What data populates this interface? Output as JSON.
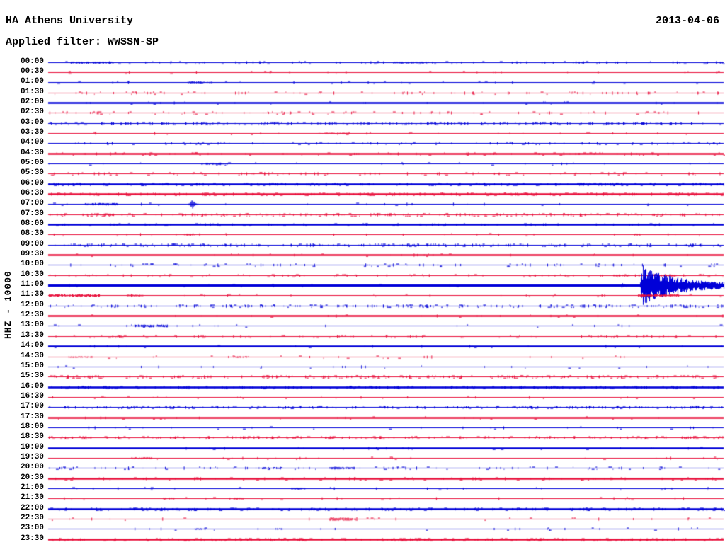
{
  "header": {
    "station": "HA Athens University",
    "filter_label": "Applied filter: WWSSN-SP",
    "date": "2013-04-06"
  },
  "chart_data": {
    "type": "line",
    "subtype": "helicorder-day-plot",
    "title": "HA Athens University",
    "date": "2013-04-06",
    "filter": "WWSSN-SP",
    "ylabel": "HHZ - 10000",
    "row_duration_minutes": 30,
    "x_range_minutes": [
      0,
      30
    ],
    "grid": false,
    "legend": "none",
    "colors": {
      "blue": "#0000D8",
      "red": "#E8103C"
    },
    "rows": [
      {
        "label": "00:00",
        "color": "blue",
        "bold": false,
        "activity": 2,
        "clusters": [
          [
            1.0,
            2.9,
            1.5
          ],
          [
            15.3,
            16.9,
            1.5
          ]
        ],
        "events": []
      },
      {
        "label": "00:30",
        "color": "red",
        "bold": false,
        "activity": 1,
        "clusters": [],
        "events": []
      },
      {
        "label": "01:00",
        "color": "blue",
        "bold": false,
        "activity": 1,
        "clusters": [
          [
            6.2,
            7.3,
            1.5
          ]
        ],
        "events": []
      },
      {
        "label": "01:30",
        "color": "red",
        "bold": false,
        "activity": 2,
        "clusters": [],
        "events": []
      },
      {
        "label": "02:00",
        "color": "blue",
        "bold": true,
        "activity": 1,
        "clusters": [],
        "events": []
      },
      {
        "label": "02:30",
        "color": "red",
        "bold": false,
        "activity": 2,
        "clusters": [],
        "events": []
      },
      {
        "label": "03:00",
        "color": "blue",
        "bold": false,
        "activity": 3,
        "clusters": [],
        "events": []
      },
      {
        "label": "03:30",
        "color": "red",
        "bold": false,
        "activity": 1,
        "clusters": [
          [
            11.9,
            13.4,
            1.2
          ]
        ],
        "events": []
      },
      {
        "label": "04:00",
        "color": "blue",
        "bold": false,
        "activity": 2,
        "clusters": [],
        "events": []
      },
      {
        "label": "04:30",
        "color": "red",
        "bold": true,
        "activity": 2,
        "clusters": [],
        "events": []
      },
      {
        "label": "05:00",
        "color": "blue",
        "bold": false,
        "activity": 1,
        "clusters": [
          [
            6.8,
            7.8,
            1.5
          ]
        ],
        "events": []
      },
      {
        "label": "05:30",
        "color": "red",
        "bold": false,
        "activity": 2,
        "clusters": [],
        "events": []
      },
      {
        "label": "06:00",
        "color": "blue",
        "bold": true,
        "activity": 3,
        "clusters": [],
        "events": []
      },
      {
        "label": "06:30",
        "color": "red",
        "bold": true,
        "activity": 3,
        "clusters": [],
        "events": []
      },
      {
        "label": "07:00",
        "color": "blue",
        "bold": false,
        "activity": 1,
        "clusters": [
          [
            1.6,
            3.1,
            1.8
          ]
        ],
        "events": [
          {
            "minute": 6.4,
            "amplitude": 7,
            "kind": "spike"
          }
        ]
      },
      {
        "label": "07:30",
        "color": "red",
        "bold": false,
        "activity": 3,
        "clusters": [],
        "events": []
      },
      {
        "label": "08:00",
        "color": "blue",
        "bold": true,
        "activity": 2,
        "clusters": [],
        "events": []
      },
      {
        "label": "08:30",
        "color": "red",
        "bold": false,
        "activity": 1,
        "clusters": [
          [
            6.0,
            6.5,
            1.5
          ],
          [
            26.0,
            26.3,
            1.5
          ]
        ],
        "events": []
      },
      {
        "label": "09:00",
        "color": "blue",
        "bold": false,
        "activity": 3,
        "clusters": [],
        "events": []
      },
      {
        "label": "09:30",
        "color": "red",
        "bold": true,
        "activity": 1,
        "clusters": [],
        "events": []
      },
      {
        "label": "10:00",
        "color": "blue",
        "bold": false,
        "activity": 2,
        "clusters": [],
        "events": []
      },
      {
        "label": "10:30",
        "color": "red",
        "bold": false,
        "activity": 2,
        "clusters": [
          [
            25.1,
            25.8,
            1.5
          ],
          [
            27.3,
            27.9,
            1.5
          ]
        ],
        "events": []
      },
      {
        "label": "11:00",
        "color": "blue",
        "bold": true,
        "activity": 1,
        "clusters": [],
        "events": [
          {
            "minute": 25.5,
            "amplitude": 4,
            "kind": "blob"
          },
          {
            "minute": 26.3,
            "amplitude": 26,
            "kind": "burst"
          }
        ]
      },
      {
        "label": "11:30",
        "color": "red",
        "bold": false,
        "activity": 1,
        "clusters": [
          [
            0.0,
            2.3,
            2.0
          ],
          [
            3.5,
            4.2,
            1.5
          ],
          [
            26.2,
            28.0,
            2.0
          ]
        ],
        "events": []
      },
      {
        "label": "12:00",
        "color": "blue",
        "bold": false,
        "activity": 3,
        "clusters": [],
        "events": []
      },
      {
        "label": "12:30",
        "color": "red",
        "bold": true,
        "activity": 1,
        "clusters": [],
        "events": []
      },
      {
        "label": "13:00",
        "color": "blue",
        "bold": false,
        "activity": 1,
        "clusters": [
          [
            3.8,
            5.3,
            2.0
          ]
        ],
        "events": []
      },
      {
        "label": "13:30",
        "color": "red",
        "bold": false,
        "activity": 2,
        "clusters": [],
        "events": []
      },
      {
        "label": "14:00",
        "color": "blue",
        "bold": true,
        "activity": 1,
        "clusters": [],
        "events": []
      },
      {
        "label": "14:30",
        "color": "red",
        "bold": false,
        "activity": 1,
        "clusters": [
          [
            0.9,
            2.0,
            1.2
          ],
          [
            8.2,
            8.9,
            1.2
          ]
        ],
        "events": []
      },
      {
        "label": "15:00",
        "color": "blue",
        "bold": false,
        "activity": 1,
        "clusters": [],
        "events": []
      },
      {
        "label": "15:30",
        "color": "red",
        "bold": false,
        "activity": 3,
        "clusters": [],
        "events": []
      },
      {
        "label": "16:00",
        "color": "blue",
        "bold": true,
        "activity": 3,
        "clusters": [],
        "events": []
      },
      {
        "label": "16:30",
        "color": "red",
        "bold": false,
        "activity": 1,
        "clusters": [],
        "events": []
      },
      {
        "label": "17:00",
        "color": "blue",
        "bold": false,
        "activity": 3,
        "clusters": [],
        "events": []
      },
      {
        "label": "17:30",
        "color": "red",
        "bold": true,
        "activity": 1,
        "clusters": [],
        "events": []
      },
      {
        "label": "18:00",
        "color": "blue",
        "bold": false,
        "activity": 1,
        "clusters": [],
        "events": []
      },
      {
        "label": "18:30",
        "color": "red",
        "bold": false,
        "activity": 3,
        "clusters": [],
        "events": []
      },
      {
        "label": "19:00",
        "color": "blue",
        "bold": true,
        "activity": 1,
        "clusters": [],
        "events": []
      },
      {
        "label": "19:30",
        "color": "red",
        "bold": false,
        "activity": 1,
        "clusters": [
          [
            3.7,
            4.6,
            1.5
          ]
        ],
        "events": []
      },
      {
        "label": "20:00",
        "color": "blue",
        "bold": false,
        "activity": 2,
        "clusters": [
          [
            9.5,
            10.4,
            1.5
          ],
          [
            12.5,
            13.6,
            1.8
          ]
        ],
        "events": []
      },
      {
        "label": "20:30",
        "color": "red",
        "bold": true,
        "activity": 2,
        "clusters": [],
        "events": []
      },
      {
        "label": "21:00",
        "color": "blue",
        "bold": false,
        "activity": 1,
        "clusters": [
          [
            10.8,
            11.4,
            1.5
          ]
        ],
        "events": []
      },
      {
        "label": "21:30",
        "color": "red",
        "bold": false,
        "activity": 1,
        "clusters": [
          [
            5.1,
            5.6,
            1.5
          ],
          [
            8.2,
            8.7,
            1.5
          ]
        ],
        "events": []
      },
      {
        "label": "22:00",
        "color": "blue",
        "bold": true,
        "activity": 3,
        "clusters": [],
        "events": []
      },
      {
        "label": "22:30",
        "color": "red",
        "bold": false,
        "activity": 1,
        "clusters": [
          [
            12.5,
            13.7,
            2.5
          ]
        ],
        "events": []
      },
      {
        "label": "23:00",
        "color": "blue",
        "bold": false,
        "activity": 1,
        "clusters": [
          [
            6.5,
            7.0,
            1.2
          ],
          [
            10.1,
            10.4,
            1.2
          ]
        ],
        "events": []
      },
      {
        "label": "23:30",
        "color": "red",
        "bold": true,
        "activity": 3,
        "clusters": [],
        "events": []
      }
    ]
  }
}
